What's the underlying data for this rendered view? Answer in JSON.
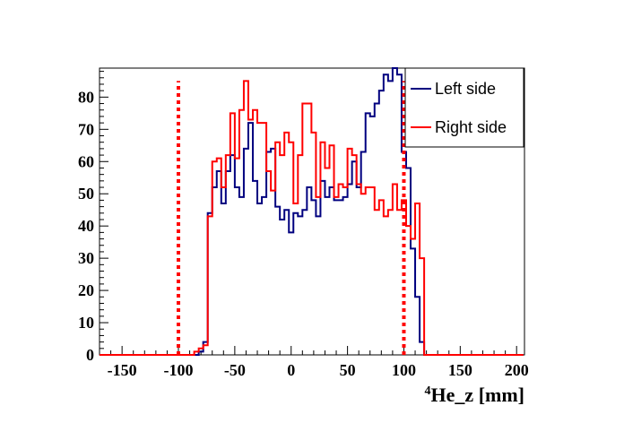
{
  "chart_data": {
    "type": "step-histogram",
    "xlabel": "He_z [mm]",
    "xlabel_superscript": "4",
    "ylabel": "",
    "xlim": [
      -170,
      207
    ],
    "ylim": [
      0,
      89
    ],
    "x_ticks": [
      -150,
      -100,
      -50,
      0,
      50,
      100,
      150,
      200
    ],
    "y_ticks": [
      0,
      10,
      20,
      30,
      40,
      50,
      60,
      70,
      80
    ],
    "grid": false,
    "legend_position": "top-right",
    "bin_start": -170,
    "bin_width": 4,
    "series": [
      {
        "name": "Left side",
        "color": "#00007f",
        "values": [
          0,
          0,
          0,
          0,
          0,
          0,
          0,
          0,
          0,
          0,
          0,
          0,
          0,
          0,
          0,
          0,
          0,
          0,
          0,
          0,
          0,
          0,
          1,
          4,
          44,
          52,
          57,
          47,
          57,
          62,
          52,
          49,
          64,
          72,
          54,
          47,
          49,
          63,
          64,
          46,
          42,
          45,
          38,
          44,
          43,
          45,
          52,
          48,
          43,
          54,
          49,
          52,
          48,
          48,
          49,
          53,
          60,
          52,
          63,
          75,
          74,
          78,
          82,
          87,
          85,
          89,
          87,
          63,
          58,
          33,
          18,
          4,
          0,
          0,
          0,
          0,
          0,
          0,
          0,
          0,
          0,
          0,
          0,
          0,
          0,
          0,
          0,
          0,
          0,
          0,
          0,
          0,
          0,
          0
        ]
      },
      {
        "name": "Right side",
        "color": "#ff0000",
        "values": [
          0,
          0,
          0,
          0,
          0,
          0,
          0,
          0,
          0,
          0,
          0,
          0,
          0,
          0,
          0,
          0,
          0,
          0,
          0,
          0,
          0,
          1,
          2,
          3,
          43,
          60,
          61,
          52,
          62,
          75,
          61,
          76,
          85,
          73,
          76,
          72,
          72,
          57,
          51,
          66,
          62,
          69,
          66,
          47,
          62,
          78,
          78,
          69,
          49,
          66,
          58,
          65,
          49,
          53,
          52,
          64,
          62,
          53,
          50,
          52,
          52,
          45,
          48,
          43,
          45,
          53,
          45,
          48,
          40,
          36,
          47,
          30,
          0,
          0,
          0,
          0,
          0,
          0,
          0,
          0,
          0,
          0,
          0,
          0,
          0,
          0,
          0,
          0,
          0,
          0,
          0,
          0,
          0,
          0
        ]
      }
    ],
    "cut_lines": {
      "positions": [
        -100,
        100
      ],
      "height": 85,
      "color": "#ff0000",
      "style": "dotted"
    }
  }
}
